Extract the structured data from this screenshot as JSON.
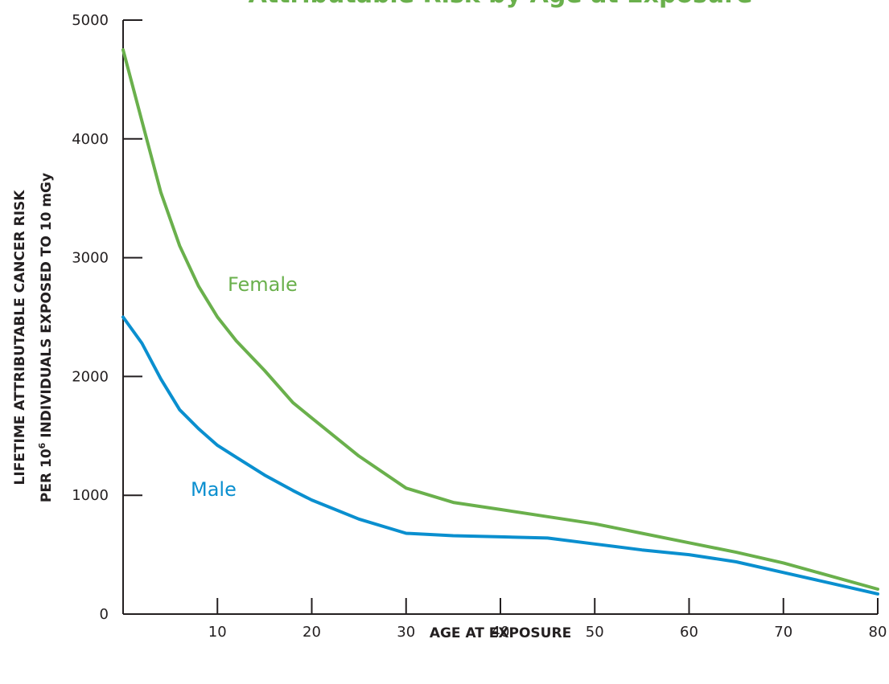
{
  "chart_data": {
    "type": "line",
    "title": "Attributable Risk by Age at Exposure",
    "title_color": "#6ab04c",
    "xlabel": "AGE AT EXPOSURE",
    "ylabel": {
      "line1": "LIFETIME ATTRIBUTABLE CANCER RISK",
      "line2_pre": "PER 10",
      "line2_sup": "6",
      "line2_post": " INDIVIDUALS EXPOSED TO 10 mGy"
    },
    "xlim": [
      0,
      80
    ],
    "ylim": [
      0,
      5000
    ],
    "x_ticks": [
      10,
      20,
      30,
      40,
      50,
      60,
      70,
      80
    ],
    "y_ticks": [
      0,
      1000,
      2000,
      3000,
      4000,
      5000
    ],
    "grid": false,
    "legend": "inline labels",
    "series": [
      {
        "name": "Female",
        "color": "#6ab04c",
        "x": [
          0,
          2,
          4,
          6,
          8,
          10,
          12,
          15,
          18,
          20,
          25,
          30,
          35,
          40,
          45,
          50,
          55,
          60,
          65,
          70,
          75,
          80
        ],
        "y": [
          4750,
          4150,
          3550,
          3100,
          2760,
          2500,
          2300,
          2050,
          1780,
          1650,
          1330,
          1060,
          940,
          880,
          820,
          760,
          680,
          600,
          520,
          430,
          320,
          210
        ]
      },
      {
        "name": "Male",
        "color": "#0a8fcf",
        "x": [
          0,
          2,
          4,
          6,
          8,
          10,
          12,
          15,
          18,
          20,
          25,
          30,
          35,
          40,
          45,
          50,
          55,
          60,
          65,
          70,
          75,
          80
        ],
        "y": [
          2500,
          2280,
          1980,
          1720,
          1560,
          1420,
          1320,
          1170,
          1040,
          960,
          800,
          680,
          660,
          650,
          640,
          590,
          540,
          500,
          440,
          350,
          260,
          170
        ]
      }
    ]
  }
}
